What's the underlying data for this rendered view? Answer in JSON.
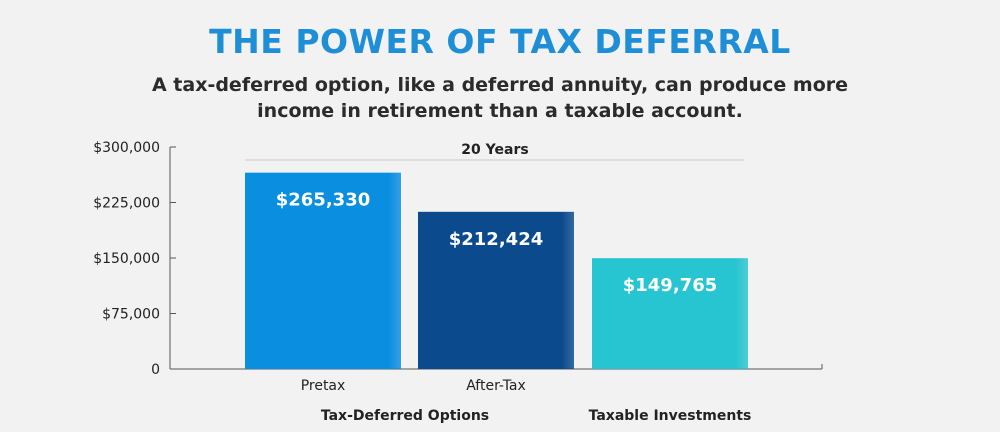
{
  "header": {
    "title": "THE POWER OF TAX DEFERRAL",
    "subtitle": "A tax-deferred option, like a deferred annuity, can produce more income in retirement than a taxable account."
  },
  "chart_data": {
    "type": "bar",
    "title": "THE POWER OF TAX DEFERRAL",
    "subtitle": "A tax-deferred option, like a deferred annuity, can produce more income in retirement than a taxable account.",
    "period_label": "20 Years",
    "categories": [
      "Pretax",
      "After-Tax",
      ""
    ],
    "groups": [
      {
        "label": "Tax-Deferred Options",
        "categories": [
          "Pretax",
          "After-Tax"
        ]
      },
      {
        "label": "Taxable Investments",
        "categories": [
          ""
        ]
      }
    ],
    "values": [
      265330,
      212424,
      149765
    ],
    "value_labels": [
      "$265,330",
      "$212,424",
      "$149,765"
    ],
    "colors": [
      "#0a8ee0",
      "#0b4a8c",
      "#27c4d1"
    ],
    "ylim": [
      0,
      300000
    ],
    "yticks": [
      0,
      75000,
      150000,
      225000,
      300000
    ],
    "ytick_labels": [
      "0",
      "$75,000",
      "$150,000",
      "$225,000",
      "$300,000"
    ],
    "grid": false,
    "legend": "none",
    "xlabel": "",
    "ylabel": ""
  }
}
